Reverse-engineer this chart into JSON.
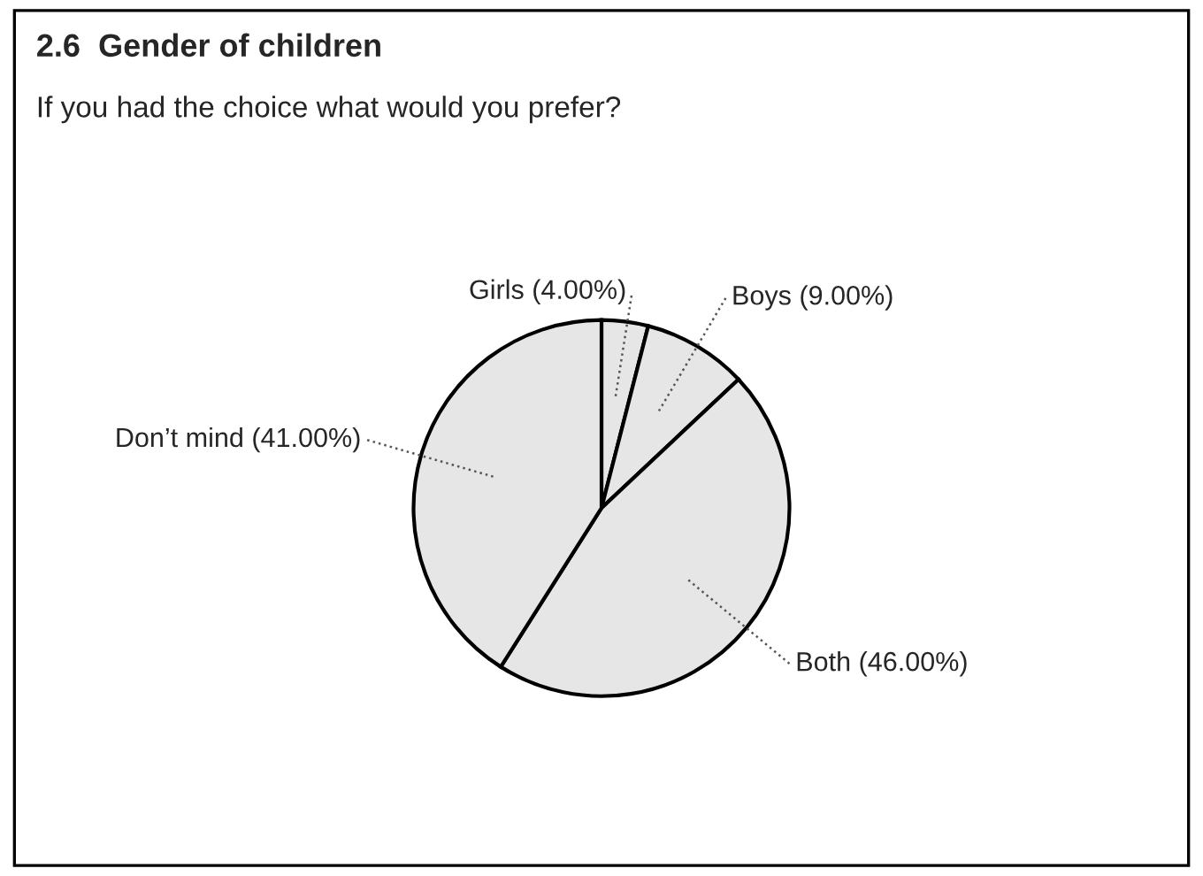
{
  "chart_data": {
    "type": "pie",
    "title": "2.6  Gender of children",
    "subtitle": "If you had the choice what would you prefer?",
    "categories": [
      "Girls",
      "Boys",
      "Both",
      "Don’t mind"
    ],
    "values": [
      4,
      9,
      46,
      41
    ],
    "value_labels": [
      "(4.00%)",
      "(9.00%)",
      "(46.00%)",
      "(41.00%)"
    ],
    "colors": [
      "#e6e6e6",
      "#e6e6e6",
      "#e6e6e6",
      "#e6e6e6"
    ]
  }
}
